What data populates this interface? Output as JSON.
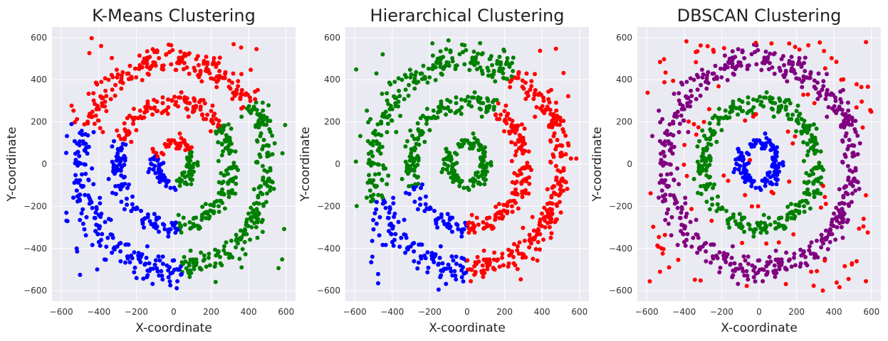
{
  "colors": {
    "figure_background": "#ffffff",
    "plot_background": "#eaeaf2",
    "grid": "#ffffff",
    "red": "#ff0000",
    "green": "#008000",
    "blue": "#0000ff",
    "purple": "#800080"
  },
  "chart_data": [
    {
      "type": "scatter",
      "title": "K-Means Clustering",
      "xlabel": "X-coordinate",
      "ylabel": "Y-coordinate",
      "xlim": [
        -650,
        650
      ],
      "ylim": [
        -650,
        650
      ],
      "xticks": [
        -600,
        -400,
        -200,
        0,
        200,
        400,
        600
      ],
      "yticks": [
        -600,
        -400,
        -200,
        0,
        200,
        400,
        600
      ],
      "xtick_labels": [
        "−600",
        "−400",
        "−200",
        "0",
        "200",
        "400",
        "600"
      ],
      "ytick_labels": [
        "−600",
        "−400",
        "−200",
        "0",
        "200",
        "400",
        "600"
      ],
      "grid": true,
      "structure": {
        "rings": [
          {
            "radius": 100,
            "count": 130,
            "spread": 30
          },
          {
            "radius": 300,
            "count": 330,
            "spread": 40
          },
          {
            "radius": 500,
            "count": 540,
            "spread": 55
          }
        ],
        "noise": {
          "count": 60,
          "min_radius": 420,
          "max_radius": 830
        }
      },
      "color_rule": {
        "mode": "sector",
        "sectors": [
          {
            "from_deg": 35,
            "to_deg": 160,
            "color": "red"
          },
          {
            "from_deg": 160,
            "to_deg": 275,
            "color": "blue"
          },
          {
            "from_deg": 275,
            "to_deg": 395,
            "color": "green"
          }
        ]
      }
    },
    {
      "type": "scatter",
      "title": "Hierarchical Clustering",
      "xlabel": "X-coordinate",
      "ylabel": "Y-coordinate",
      "xlim": [
        -650,
        650
      ],
      "ylim": [
        -650,
        650
      ],
      "xticks": [
        -600,
        -400,
        -200,
        0,
        200,
        400,
        600
      ],
      "yticks": [
        -600,
        -400,
        -200,
        0,
        200,
        400,
        600
      ],
      "xtick_labels": [
        "−600",
        "−400",
        "−200",
        "0",
        "200",
        "400",
        "600"
      ],
      "ytick_labels": [
        "−600",
        "−400",
        "−200",
        "0",
        "200",
        "400",
        "600"
      ],
      "grid": true,
      "structure": {
        "rings": [
          {
            "radius": 100,
            "count": 130,
            "spread": 30
          },
          {
            "radius": 300,
            "count": 330,
            "spread": 40
          },
          {
            "radius": 500,
            "count": 540,
            "spread": 55
          }
        ],
        "noise": {
          "count": 60,
          "min_radius": 420,
          "max_radius": 830
        }
      },
      "color_rule": {
        "mode": "ring_sector",
        "inner_ring_color": "green",
        "outer_sectors": [
          {
            "from_deg": -90,
            "to_deg": 60,
            "color": "red"
          },
          {
            "from_deg": 60,
            "to_deg": 200,
            "color": "green"
          },
          {
            "from_deg": 200,
            "to_deg": 270,
            "color": "blue"
          }
        ]
      }
    },
    {
      "type": "scatter",
      "title": "DBSCAN Clustering",
      "xlabel": "X-coordinate",
      "ylabel": "Y-coordinate",
      "xlim": [
        -650,
        650
      ],
      "ylim": [
        -650,
        650
      ],
      "xticks": [
        -600,
        -400,
        -200,
        0,
        200,
        400,
        600
      ],
      "yticks": [
        -600,
        -400,
        -200,
        0,
        200,
        400,
        600
      ],
      "xtick_labels": [
        "−600",
        "−400",
        "−200",
        "0",
        "200",
        "400",
        "600"
      ],
      "ytick_labels": [
        "−600",
        "−400",
        "−200",
        "0",
        "200",
        "400",
        "600"
      ],
      "grid": true,
      "structure": {
        "rings": [
          {
            "radius": 100,
            "count": 130,
            "spread": 30
          },
          {
            "radius": 300,
            "count": 330,
            "spread": 40
          },
          {
            "radius": 500,
            "count": 540,
            "spread": 55
          }
        ],
        "noise": {
          "count": 110,
          "min_radius": 0,
          "max_radius": 830
        }
      },
      "color_rule": {
        "mode": "ring",
        "ring_colors": [
          "blue",
          "green",
          "purple"
        ],
        "noise_color": "red"
      }
    }
  ]
}
